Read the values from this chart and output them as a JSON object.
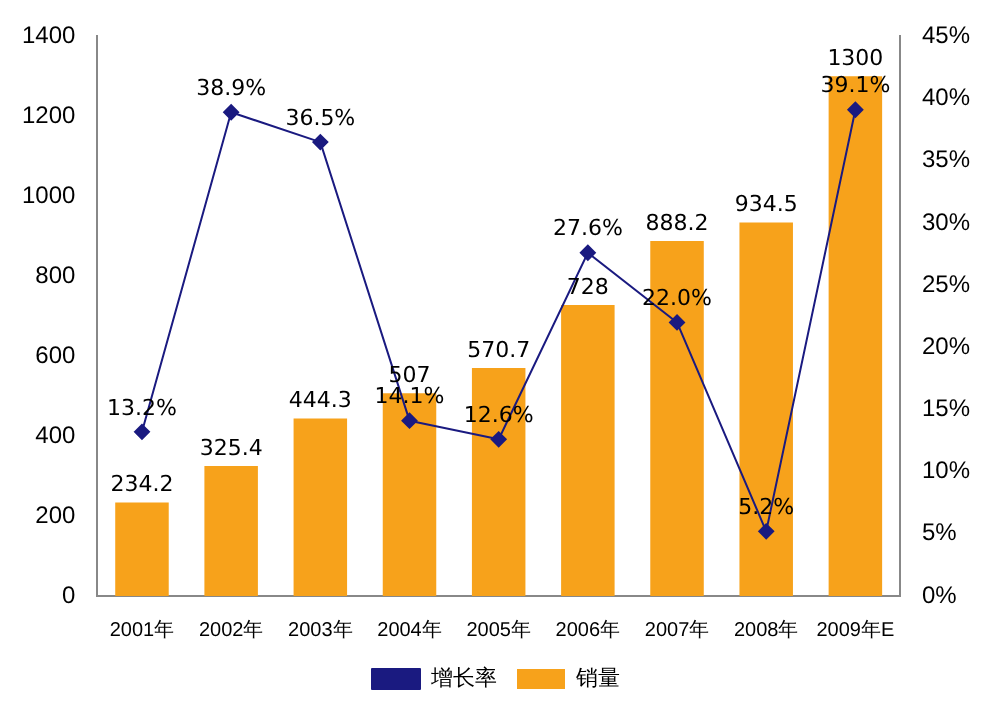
{
  "chart_data": {
    "type": "bar",
    "categories": [
      "2001年",
      "2002年",
      "2003年",
      "2004年",
      "2005年",
      "2006年",
      "2007年",
      "2008年",
      "2009年E"
    ],
    "series": [
      {
        "name": "销量",
        "color": "#f7a21b",
        "values": [
          234.2,
          325.4,
          444.3,
          507,
          570.7,
          728,
          888.2,
          934.5,
          1300
        ],
        "value_labels": [
          "234.2",
          "325.4",
          "444.3",
          "507",
          "570.7",
          "728",
          "888.2",
          "934.5",
          "1300"
        ]
      },
      {
        "name": "增长率",
        "type": "line",
        "axis": "y2",
        "color": "#1a1a80",
        "marker": "diamond",
        "values": [
          13.2,
          38.9,
          36.5,
          14.1,
          12.6,
          27.6,
          22.0,
          5.2,
          39.1
        ],
        "value_labels": [
          "13.2%",
          "38.9%",
          "36.5%",
          "14.1%",
          "12.6%",
          "27.6%",
          "22.0%",
          "5.2%",
          "39.1%"
        ]
      }
    ],
    "ylim": [
      0,
      1400
    ],
    "yticks": [
      0,
      200,
      400,
      600,
      800,
      1000,
      1200,
      1400
    ],
    "y2lim": [
      0,
      45
    ],
    "y2ticks": [
      {
        "value": 0,
        "label": "0%"
      },
      {
        "value": 5,
        "label": "5%"
      },
      {
        "value": 10,
        "label": "10%"
      },
      {
        "value": 15,
        "label": "15%"
      },
      {
        "value": 20,
        "label": "20%"
      },
      {
        "value": 25,
        "label": "25%"
      },
      {
        "value": 30,
        "label": "30%"
      },
      {
        "value": 35,
        "label": "35%"
      },
      {
        "value": 40,
        "label": "40%"
      },
      {
        "value": 45,
        "label": "45%"
      }
    ],
    "grid": false,
    "legend": "bottom"
  }
}
